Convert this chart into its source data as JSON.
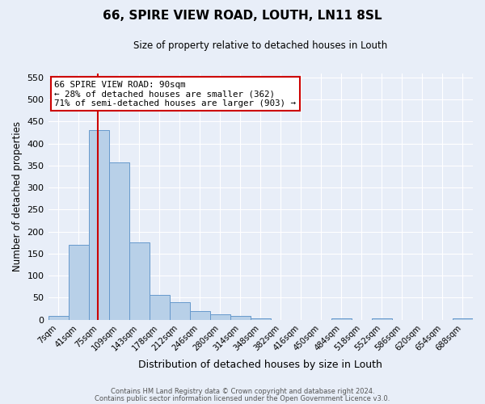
{
  "title": "66, SPIRE VIEW ROAD, LOUTH, LN11 8SL",
  "subtitle": "Size of property relative to detached houses in Louth",
  "xlabel": "Distribution of detached houses by size in Louth",
  "ylabel": "Number of detached properties",
  "bar_labels": [
    "7sqm",
    "41sqm",
    "75sqm",
    "109sqm",
    "143sqm",
    "178sqm",
    "212sqm",
    "246sqm",
    "280sqm",
    "314sqm",
    "348sqm",
    "382sqm",
    "416sqm",
    "450sqm",
    "484sqm",
    "518sqm",
    "552sqm",
    "586sqm",
    "620sqm",
    "654sqm",
    "688sqm"
  ],
  "bar_values": [
    8,
    170,
    430,
    357,
    176,
    57,
    39,
    19,
    13,
    8,
    4,
    0,
    0,
    0,
    3,
    0,
    3,
    0,
    0,
    0,
    3
  ],
  "bar_color": "#b8d0e8",
  "bar_edge_color": "#6699cc",
  "background_color": "#e8eef8",
  "grid_color": "#ffffff",
  "annotation_text": "66 SPIRE VIEW ROAD: 90sqm\n← 28% of detached houses are smaller (362)\n71% of semi-detached houses are larger (903) →",
  "annotation_box_color": "#ffffff",
  "annotation_box_edge": "#cc0000",
  "footer_line1": "Contains HM Land Registry data © Crown copyright and database right 2024.",
  "footer_line2": "Contains public sector information licensed under the Open Government Licence v3.0.",
  "ylim": [
    0,
    560
  ],
  "yticks": [
    0,
    50,
    100,
    150,
    200,
    250,
    300,
    350,
    400,
    450,
    500,
    550
  ]
}
